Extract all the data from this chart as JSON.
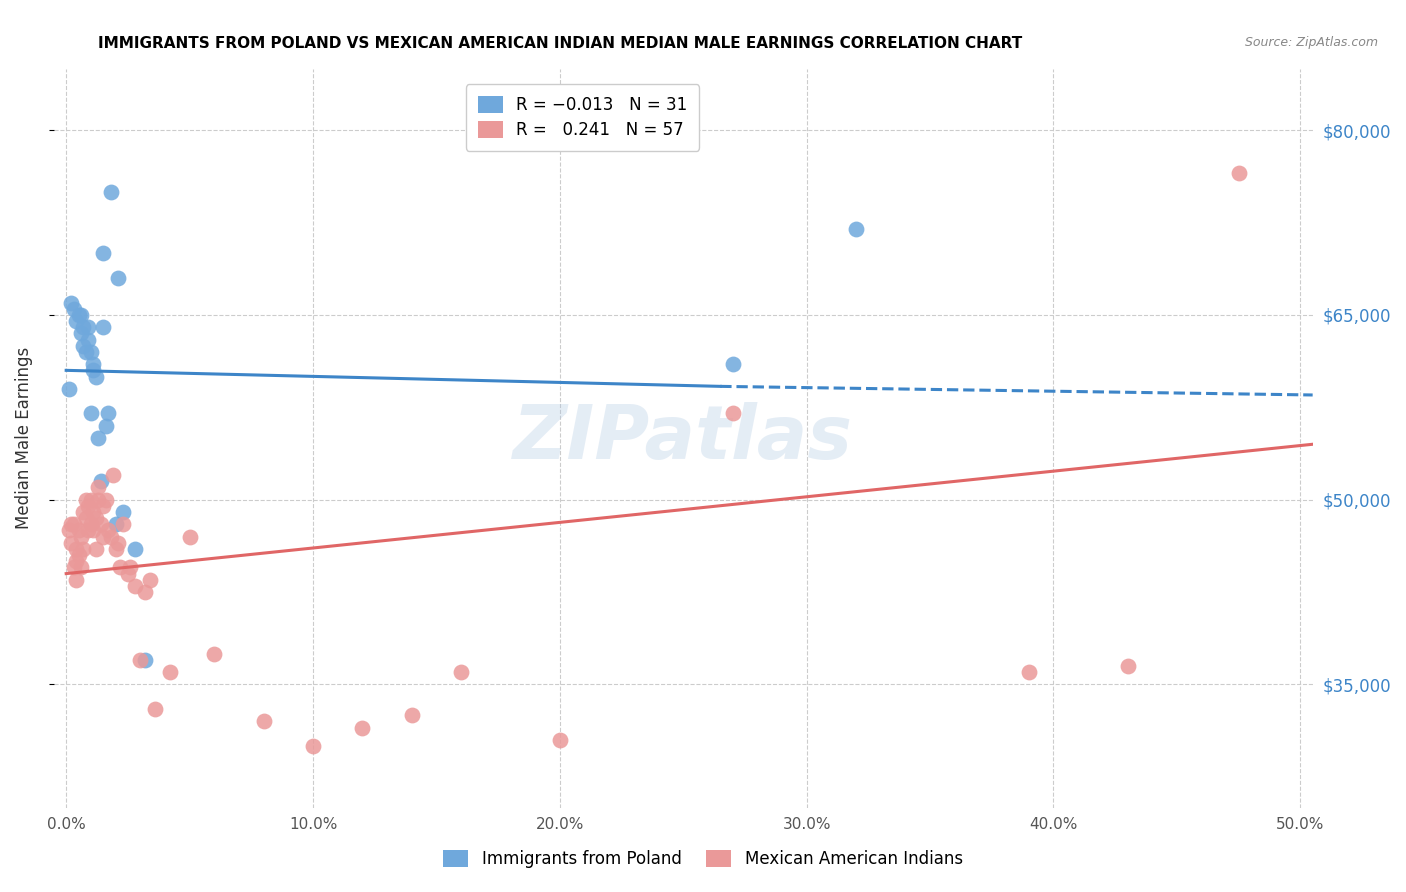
{
  "title": "IMMIGRANTS FROM POLAND VS MEXICAN AMERICAN INDIAN MEDIAN MALE EARNINGS CORRELATION CHART",
  "source": "Source: ZipAtlas.com",
  "ylabel": "Median Male Earnings",
  "x_tick_labels": [
    "0.0%",
    "10.0%",
    "20.0%",
    "30.0%",
    "40.0%",
    "50.0%"
  ],
  "x_ticks": [
    0.0,
    0.1,
    0.2,
    0.3,
    0.4,
    0.5
  ],
  "xlim": [
    -0.005,
    0.505
  ],
  "ylim": [
    25000,
    85000
  ],
  "y_ticks": [
    35000,
    50000,
    65000,
    80000
  ],
  "y_tick_labels": [
    "$35,000",
    "$50,000",
    "$65,000",
    "$80,000"
  ],
  "blue_color": "#6fa8dc",
  "pink_color": "#ea9999",
  "blue_line_color": "#3d85c8",
  "pink_line_color": "#e06666",
  "axis_label_color": "#3d85c8",
  "title_color": "#000000",
  "grid_color": "#cccccc",
  "watermark": "ZIPatlas",
  "poland_x": [
    0.001,
    0.002,
    0.003,
    0.004,
    0.005,
    0.006,
    0.006,
    0.007,
    0.007,
    0.008,
    0.009,
    0.009,
    0.01,
    0.01,
    0.011,
    0.011,
    0.012,
    0.013,
    0.014,
    0.015,
    0.015,
    0.016,
    0.017,
    0.018,
    0.02,
    0.021,
    0.023,
    0.028,
    0.032,
    0.27,
    0.32
  ],
  "poland_y": [
    59000,
    66000,
    65500,
    64500,
    65000,
    65000,
    63500,
    64000,
    62500,
    62000,
    64000,
    63000,
    57000,
    62000,
    61000,
    60500,
    60000,
    55000,
    51500,
    64000,
    70000,
    56000,
    57000,
    75000,
    48000,
    68000,
    49000,
    46000,
    37000,
    61000,
    72000
  ],
  "mexico_x": [
    0.001,
    0.002,
    0.002,
    0.003,
    0.003,
    0.004,
    0.004,
    0.004,
    0.005,
    0.005,
    0.006,
    0.006,
    0.007,
    0.007,
    0.008,
    0.008,
    0.009,
    0.009,
    0.01,
    0.01,
    0.011,
    0.011,
    0.012,
    0.012,
    0.013,
    0.013,
    0.014,
    0.015,
    0.015,
    0.016,
    0.017,
    0.018,
    0.019,
    0.02,
    0.021,
    0.022,
    0.023,
    0.025,
    0.026,
    0.028,
    0.03,
    0.032,
    0.034,
    0.036,
    0.042,
    0.05,
    0.06,
    0.08,
    0.1,
    0.12,
    0.14,
    0.16,
    0.2,
    0.27,
    0.39,
    0.43,
    0.475
  ],
  "mexico_y": [
    47500,
    48000,
    46500,
    48000,
    44500,
    46000,
    43500,
    45000,
    47500,
    45500,
    44500,
    47000,
    46000,
    49000,
    50000,
    48500,
    47500,
    49500,
    48000,
    50000,
    47500,
    49000,
    48500,
    46000,
    51000,
    50000,
    48000,
    49500,
    47000,
    50000,
    47500,
    47000,
    52000,
    46000,
    46500,
    44500,
    48000,
    44000,
    44500,
    43000,
    37000,
    42500,
    43500,
    33000,
    36000,
    47000,
    37500,
    32000,
    30000,
    31500,
    32500,
    36000,
    30500,
    57000,
    36000,
    36500,
    76500
  ],
  "blue_trend_x0": 0.0,
  "blue_trend_x_switch": 0.265,
  "blue_trend_x1": 0.505,
  "blue_trend_y0": 60500,
  "blue_trend_y_switch": 59200,
  "blue_trend_y1": 58500,
  "pink_trend_x0": 0.0,
  "pink_trend_x1": 0.505,
  "pink_trend_y0": 44000,
  "pink_trend_y1": 54500,
  "marker_size": 130
}
